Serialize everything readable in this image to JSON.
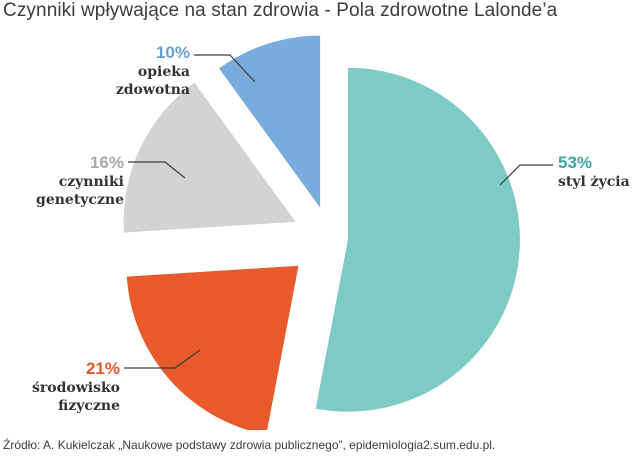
{
  "chart_data": {
    "type": "pie",
    "title": "Czynniki wpływające na stan zdrowia - Pola zdrowotne Lalonde’a",
    "exploded": true,
    "slices": [
      {
        "label_lines": [
          "styl życia"
        ],
        "value": 53,
        "value_text": "53%",
        "color": "#7ecbc5",
        "label_color": "#3aa8a0"
      },
      {
        "label_lines": [
          "środowisko",
          "fizyczne"
        ],
        "value": 21,
        "value_text": "21%",
        "color": "#e85a2b",
        "label_color": "#e0572a"
      },
      {
        "label_lines": [
          "czynniki",
          "genetyczne"
        ],
        "value": 16,
        "value_text": "16%",
        "color": "#d2d3d5",
        "label_color": "#a8a9ab"
      },
      {
        "label_lines": [
          "opieka",
          "zdowotna"
        ],
        "value": 10,
        "value_text": "10%",
        "color": "#79abdd",
        "label_color": "#6a9fd4"
      }
    ]
  },
  "source": "Źródło: A. Kukielczak „Naukowe podstawy zdrowia publicznego”, epidemiologia2.sum.edu.pl."
}
